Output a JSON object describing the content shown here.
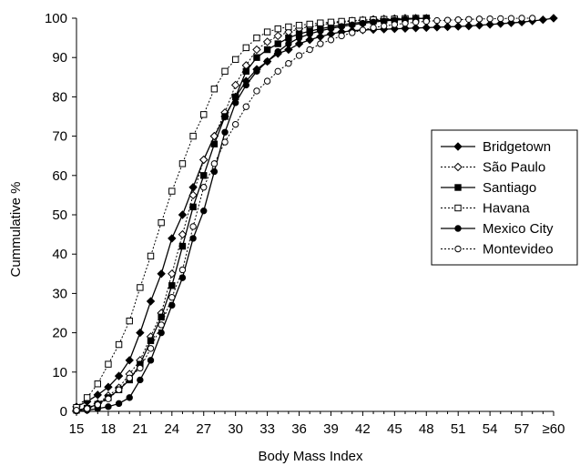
{
  "chart_data": {
    "type": "line",
    "xlabel": "Body Mass Index",
    "ylabel": "Cummulative %",
    "y_ticks": [
      "0",
      "10",
      "20",
      "30",
      "40",
      "50",
      "60",
      "70",
      "80",
      "90",
      "100"
    ],
    "x_ticks": [
      "15",
      "18",
      "21",
      "24",
      "27",
      "30",
      "33",
      "36",
      "39",
      "42",
      "45",
      "48",
      "51",
      "54",
      "57",
      "≥60"
    ],
    "ylim": [
      0,
      100
    ],
    "xlim": [
      15,
      60
    ],
    "legend_position": "right",
    "grid": false,
    "series": [
      {
        "name": "Bridgetown",
        "marker": "diamond-filled",
        "dashed": false,
        "x": [
          15,
          16,
          17,
          18,
          19,
          20,
          21,
          22,
          23,
          24,
          25,
          26,
          27,
          28,
          29,
          30,
          31,
          32,
          33,
          34,
          35,
          36,
          37,
          38,
          39,
          40,
          41,
          42,
          43,
          44,
          45,
          46,
          47,
          48,
          49,
          50,
          51,
          52,
          53,
          54,
          55,
          56,
          57,
          58,
          59,
          60
        ],
        "values": [
          1.2,
          2.5,
          4.2,
          6.2,
          9,
          13,
          20,
          28,
          35,
          44,
          50,
          57,
          64,
          70,
          75,
          80,
          84,
          87,
          89,
          91,
          92,
          93.5,
          94.5,
          95.3,
          96,
          96.5,
          96.8,
          97,
          97.1,
          97.2,
          97.3,
          97.4,
          97.5,
          97.6,
          97.7,
          97.8,
          97.9,
          98,
          98.2,
          98.4,
          98.6,
          98.8,
          99,
          99.3,
          99.6,
          100
        ]
      },
      {
        "name": "São Paulo",
        "marker": "diamond-open",
        "dashed": true,
        "x": [
          15,
          16,
          17,
          18,
          19,
          20,
          21,
          22,
          23,
          24,
          25,
          26,
          27,
          28,
          29,
          30,
          31,
          32,
          33,
          34,
          35,
          36,
          37,
          38,
          39,
          40,
          41,
          42,
          43,
          44,
          45,
          46,
          47,
          48
        ],
        "values": [
          0.3,
          0.8,
          2,
          4,
          6,
          9.5,
          13,
          19,
          25,
          35,
          45,
          55,
          64,
          70,
          76,
          83,
          88,
          92,
          94,
          95.5,
          96.5,
          97.3,
          97.9,
          98.3,
          98.7,
          99,
          99.3,
          99.5,
          99.7,
          99.8,
          99.9,
          100,
          100,
          100
        ]
      },
      {
        "name": "Santiago",
        "marker": "square-filled",
        "dashed": false,
        "x": [
          15,
          16,
          17,
          18,
          19,
          20,
          21,
          22,
          23,
          24,
          25,
          26,
          27,
          28,
          29,
          30,
          31,
          32,
          33,
          34,
          35,
          36,
          37,
          38,
          39,
          40,
          41,
          42,
          43,
          44,
          45,
          46,
          47,
          48
        ],
        "values": [
          0.3,
          0.8,
          1.8,
          3.5,
          5.5,
          8,
          12,
          18,
          24,
          32,
          42,
          52,
          60,
          68,
          75,
          80,
          86.5,
          90,
          92,
          93.5,
          95,
          96,
          96.7,
          97.3,
          97.8,
          98.3,
          98.7,
          99,
          99.3,
          99.5,
          99.7,
          99.8,
          99.9,
          100
        ]
      },
      {
        "name": "Havana",
        "marker": "square-open",
        "dashed": true,
        "x": [
          15,
          16,
          17,
          18,
          19,
          20,
          21,
          22,
          23,
          24,
          25,
          26,
          27,
          28,
          29,
          30,
          31,
          32,
          33,
          34,
          35,
          36,
          37,
          38,
          39,
          40,
          41,
          42,
          43,
          44,
          45,
          46,
          47,
          48
        ],
        "values": [
          1,
          3.5,
          7,
          12,
          17,
          23,
          31.5,
          39.5,
          48,
          56,
          63,
          70,
          75.5,
          82,
          86.5,
          89.5,
          92.5,
          95,
          96.5,
          97.3,
          97.8,
          98.2,
          98.5,
          98.8,
          99,
          99.2,
          99.4,
          99.5,
          99.6,
          99.7,
          99.8,
          99.9,
          100,
          100
        ]
      },
      {
        "name": "Mexico City",
        "marker": "circle-filled",
        "dashed": false,
        "x": [
          15,
          16,
          17,
          18,
          19,
          20,
          21,
          22,
          23,
          24,
          25,
          26,
          27,
          28,
          29,
          30,
          31,
          32,
          33,
          34,
          35,
          36,
          37,
          38,
          39,
          40,
          41,
          42,
          43,
          44,
          45,
          46,
          47,
          48
        ],
        "values": [
          0.1,
          0.3,
          0.7,
          1.2,
          2,
          3.5,
          8,
          13,
          20,
          27,
          34,
          44,
          51,
          61,
          71,
          78.5,
          83,
          86.5,
          89,
          91.5,
          93.5,
          95,
          96,
          96.8,
          97.4,
          97.9,
          98.3,
          98.7,
          99,
          99.3,
          99.5,
          99.7,
          99.9,
          100
        ]
      },
      {
        "name": "Montevideo",
        "marker": "circle-open",
        "dashed": true,
        "x": [
          15,
          16,
          17,
          18,
          19,
          20,
          21,
          22,
          23,
          24,
          25,
          26,
          27,
          28,
          29,
          30,
          31,
          32,
          33,
          34,
          35,
          36,
          37,
          38,
          39,
          40,
          41,
          42,
          43,
          44,
          45,
          46,
          47,
          48,
          49,
          50,
          51,
          52,
          53,
          54,
          55,
          56,
          57,
          58
        ],
        "values": [
          0.3,
          0.7,
          1.7,
          3.2,
          5.5,
          8.5,
          11,
          16,
          22,
          29,
          36,
          47,
          57,
          63,
          68.5,
          73,
          77.5,
          81.5,
          84,
          86.5,
          88.5,
          90.5,
          92,
          93.5,
          94.5,
          95.5,
          96.3,
          97,
          97.6,
          98,
          98.4,
          98.7,
          99,
          99.2,
          99.4,
          99.5,
          99.6,
          99.7,
          99.8,
          99.85,
          99.9,
          99.95,
          100,
          100
        ]
      }
    ]
  }
}
